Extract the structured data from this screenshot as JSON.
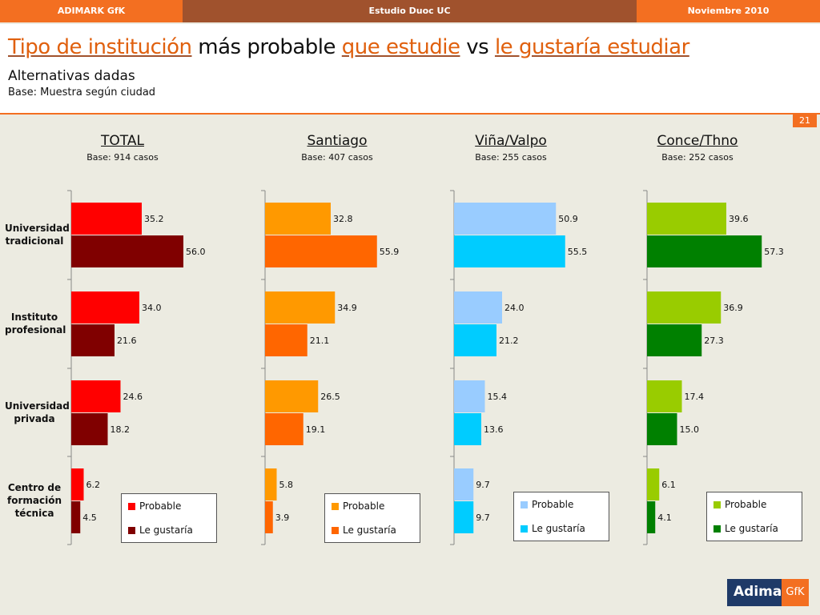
{
  "header_bar": {
    "left": "ADIMARK GfK",
    "center": "Estudio Duoc UC",
    "right": "Noviembre 2010"
  },
  "title": {
    "part1": "Tipo de institución",
    "part2": " más probable ",
    "part3": "que estudie",
    "part4": " vs ",
    "part5": "le gustaría estudiar"
  },
  "subtitle": "Alternativas dadas",
  "base_note": "Base: Muestra según ciudad",
  "page_number": "21",
  "logo": {
    "main": "Adimark",
    "suffix": "GfK"
  },
  "chart_data": {
    "type": "bar",
    "orientation": "horizontal",
    "categories": [
      "Universidad tradicional",
      "Instituto profesional",
      "Universidad privada",
      "Centro de formación técnica"
    ],
    "category_lines": [
      [
        "Universidad",
        "tradicional"
      ],
      [
        "Instituto",
        "profesional"
      ],
      [
        "Universidad",
        "privada"
      ],
      [
        "Centro de",
        "formación",
        "técnica"
      ]
    ],
    "series_names": [
      "Probable",
      "Le gustaría"
    ],
    "panels": [
      {
        "title": "TOTAL",
        "base": "Base: 914 casos",
        "colors": [
          "#ff0000",
          "#800000"
        ],
        "series": [
          {
            "name": "Probable",
            "values": [
              35.2,
              34.0,
              24.6,
              6.2
            ]
          },
          {
            "name": "Le gustaría",
            "values": [
              56.0,
              21.6,
              18.2,
              4.5
            ]
          }
        ]
      },
      {
        "title": "Santiago",
        "base": "Base: 407 casos",
        "colors": [
          "#ff9900",
          "#ff6600"
        ],
        "series": [
          {
            "name": "Probable",
            "values": [
              32.8,
              34.9,
              26.5,
              5.8
            ]
          },
          {
            "name": "Le gustaría",
            "values": [
              55.9,
              21.1,
              19.1,
              3.9
            ]
          }
        ]
      },
      {
        "title": "Viña/Valpo",
        "base": "Base: 255 casos",
        "colors": [
          "#99ccff",
          "#00ccff"
        ],
        "series": [
          {
            "name": "Probable",
            "values": [
              50.9,
              24.0,
              15.4,
              9.7
            ]
          },
          {
            "name": "Le gustaría",
            "values": [
              55.5,
              21.2,
              13.6,
              9.7
            ]
          }
        ]
      },
      {
        "title": "Conce/Thno",
        "base": "Base: 252 casos",
        "colors": [
          "#99cc00",
          "#008000"
        ],
        "series": [
          {
            "name": "Probable",
            "values": [
              39.6,
              36.9,
              17.4,
              6.1
            ]
          },
          {
            "name": "Le gustaría",
            "values": [
              57.3,
              27.3,
              15.0,
              4.1
            ]
          }
        ]
      }
    ],
    "xlim": [
      0,
      100
    ],
    "grid": false,
    "legend": "bottom-right"
  }
}
